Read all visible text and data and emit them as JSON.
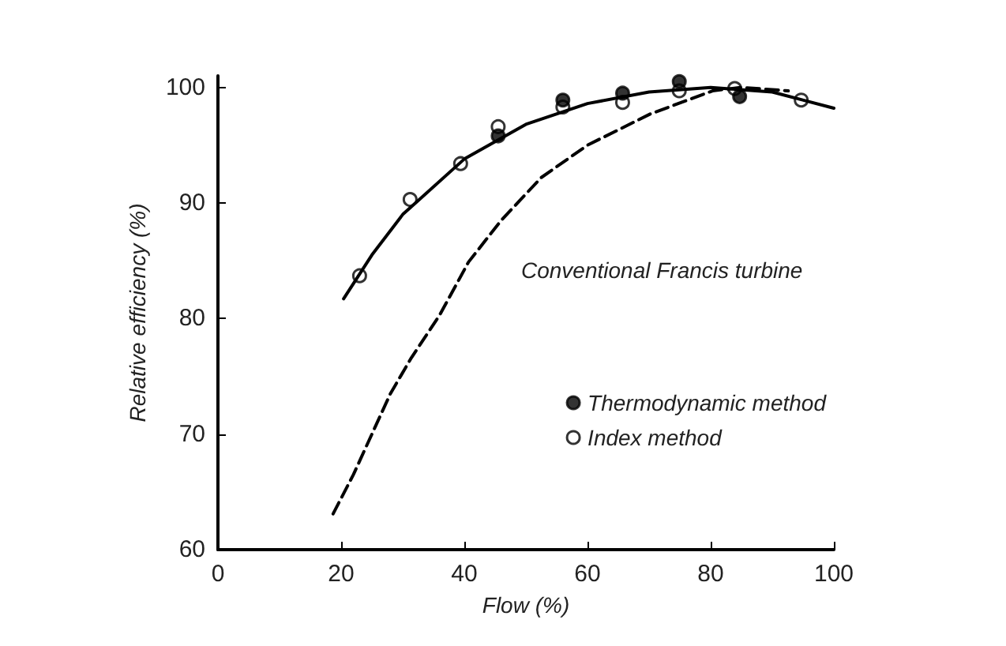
{
  "chart_data": {
    "type": "scatter",
    "xlabel": "Flow (%)",
    "ylabel": "Relative efficiency (%)",
    "xlim": [
      0,
      100
    ],
    "xticks": [
      0,
      20,
      40,
      60,
      80,
      100
    ],
    "ylim": [
      60,
      101
    ],
    "yticks": [
      60,
      70,
      80,
      90,
      100
    ],
    "grid": false,
    "legend": "right",
    "annotations": [
      "Conventional Francis turbine"
    ],
    "series": [
      {
        "name": "Thermodynamic method",
        "marker": "circle",
        "color": "#000000",
        "x": [
          45.5,
          56,
          65.7,
          74.9,
          84.7
        ],
        "values": [
          95.8,
          98.9,
          99.5,
          100.5,
          99.2
        ]
      },
      {
        "name": "Index method",
        "marker": "open circle",
        "color": "#000000",
        "x": [
          23,
          31.2,
          39.4,
          45.5,
          56,
          65.7,
          74.9,
          83.9,
          94.7
        ],
        "values": [
          83.7,
          90.3,
          93.4,
          96.6,
          98.3,
          98.7,
          99.7,
          99.9,
          98.9
        ]
      },
      {
        "type": "line",
        "marker": "none",
        "line_style": "solid",
        "color": "#000000",
        "x": [
          20.4,
          25,
          30,
          40,
          50,
          60,
          70,
          80,
          90,
          100
        ],
        "values": [
          81.7,
          85.5,
          89,
          93.8,
          96.8,
          98.6,
          99.6,
          100,
          99.6,
          98.2
        ]
      },
      {
        "type": "line",
        "marker": "none",
        "line_style": "dashed",
        "color": "#000000",
        "x": [
          18.7,
          22,
          25,
          28,
          31.4,
          36,
          40.7,
          46,
          52.5,
          60,
          70.2,
          80.3,
          85,
          92.6
        ],
        "values": [
          63.1,
          66.5,
          70,
          73.5,
          76.6,
          80.3,
          84.9,
          88.5,
          92.2,
          95,
          97.7,
          99.7,
          100,
          99.7
        ]
      }
    ]
  }
}
